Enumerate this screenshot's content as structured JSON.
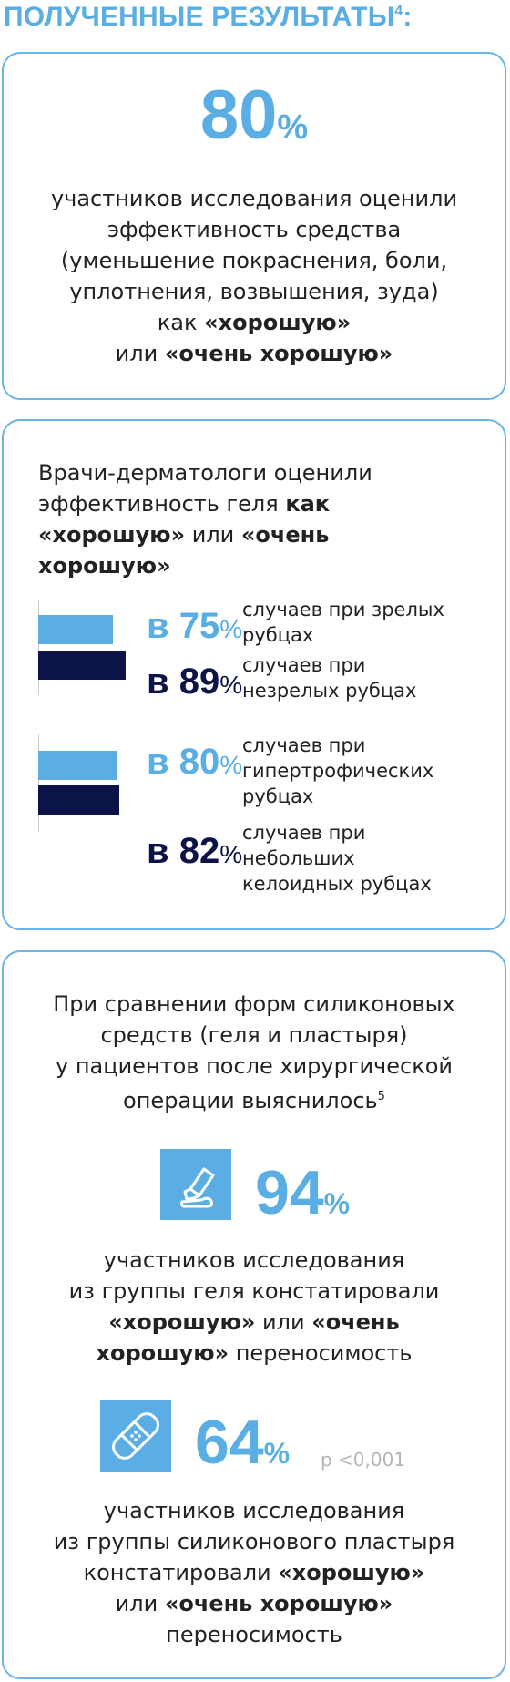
{
  "heading": {
    "text": "ПОЛУЧЕННЫЕ РЕЗУЛЬТАТЫ",
    "sup": "4",
    "colon": ":"
  },
  "card1": {
    "value": "80",
    "pct": "%",
    "lines": [
      "участников исследования оценили",
      "эффективность средства",
      "(уменьшение покраснения, боли,",
      "уплотнения, возвышения, зуда)"
    ],
    "line5_prefix": "как ",
    "line5_bold": "«хорошую»",
    "line6_prefix": "или ",
    "line6_bold": "«очень хорошую»"
  },
  "card2": {
    "intro": {
      "l1": "Врачи-дерматологи оценили",
      "l2_prefix": "эффективность геля ",
      "l2_bold": "как",
      "l3_bold": "«хорошую»",
      "l3_mid": " или ",
      "l3_bold2": "«очень",
      "l4_bold": "хорошую»"
    },
    "stats": [
      {
        "prefix": "в ",
        "value": "75",
        "pct": "%",
        "desc1": "случаев при зрелых",
        "desc2": "рубцах",
        "desc3": ""
      },
      {
        "prefix": "в ",
        "value": "89",
        "pct": "%",
        "desc1": "случаев при",
        "desc2": "незрелых рубцах",
        "desc3": ""
      },
      {
        "prefix": "в ",
        "value": "80",
        "pct": "%",
        "desc1": "случаев при",
        "desc2": "гипертрофических",
        "desc3": "рубцах"
      },
      {
        "prefix": "в ",
        "value": "82",
        "pct": "%",
        "desc1": "случаев при",
        "desc2": "небольших",
        "desc3": "келоидных рубцах"
      }
    ],
    "colors": {
      "light": "#5aaee3",
      "dark": "#0c1347"
    }
  },
  "card3": {
    "intro": [
      "При сравнении форм силиконовых",
      "средств (геля и пластыря)",
      "у пациентов после хирургической"
    ],
    "intro_l4": "операции выяснилось",
    "intro_sup": "5",
    "gel": {
      "icon": "gel-tube-icon",
      "value": "94",
      "pct": "%",
      "l1": "участников исследования",
      "l2": "из группы геля констатировали",
      "l3_bold": "«хорошую»",
      "l3_mid": " или ",
      "l3_bold2": "«очень",
      "l4_bold": "хорошую»",
      "l4_rest": " переносимость"
    },
    "patch": {
      "icon": "bandage-patch-icon",
      "value": "64",
      "pct": "%",
      "pvalue": "p <0,001",
      "l1": "участников исследования",
      "l2": "из группы силиконового пластыря",
      "l3_prefix": "констатировали ",
      "l3_bold": "«хорошую»",
      "l4_prefix": "или ",
      "l4_bold": "«очень хорошую»",
      "l5": "переносимость"
    }
  }
}
